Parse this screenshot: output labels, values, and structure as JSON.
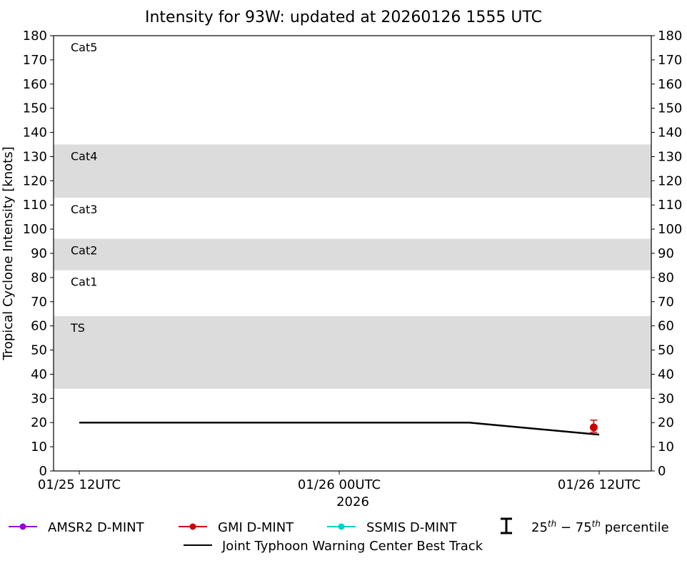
{
  "chart_data": {
    "type": "line",
    "title": "Intensity for 93W: updated at 20260126 1555 UTC",
    "xlabel": "2026",
    "ylabel": "Tropical Cyclone Intensity [knots]",
    "ylim": [
      0,
      180
    ],
    "yticks": [
      0,
      10,
      20,
      30,
      40,
      50,
      60,
      70,
      80,
      90,
      100,
      110,
      120,
      130,
      140,
      150,
      160,
      170,
      180
    ],
    "xlim_hours": [
      -2.4,
      12.4
    ],
    "xticks": [
      {
        "hour": 0,
        "label": "01/25 12UTC"
      },
      {
        "hour": 12,
        "label": "01/26 00UTC"
      },
      {
        "hour": 24,
        "label": "01/26 12UTC"
      }
    ],
    "category_bands": [
      {
        "label": "TS",
        "min": 34,
        "max": 64,
        "shaded": true
      },
      {
        "label": "Cat1",
        "min": 64,
        "max": 83,
        "shaded": false
      },
      {
        "label": "Cat2",
        "min": 83,
        "max": 96,
        "shaded": true
      },
      {
        "label": "Cat3",
        "min": 96,
        "max": 113,
        "shaded": false
      },
      {
        "label": "Cat4",
        "min": 113,
        "max": 135,
        "shaded": true
      },
      {
        "label": "Cat5",
        "min": 135,
        "max": 180,
        "shaded": false
      }
    ],
    "series": [
      {
        "name": "Joint Typhoon Warning Center Best Track",
        "color": "#000000",
        "points": [
          {
            "hour": 0,
            "value": 20
          },
          {
            "hour": 18,
            "value": 20
          },
          {
            "hour": 24,
            "value": 15
          }
        ]
      },
      {
        "name": "GMI D-MINT",
        "color": "#cc0000",
        "points": [
          {
            "hour": 23.75,
            "value": 18,
            "p25": 16,
            "p75": 21
          }
        ]
      },
      {
        "name": "AMSR2 D-MINT",
        "color": "#9400d3",
        "points": []
      },
      {
        "name": "SSMIS D-MINT",
        "color": "#00ced1",
        "points": []
      }
    ],
    "legend": {
      "position": "bottom",
      "entries": [
        "AMSR2 D-MINT",
        "GMI D-MINT",
        "SSMIS D-MINT",
        "25th - 75th percentile",
        "Joint Typhoon Warning Center Best Track"
      ]
    }
  },
  "legend": {
    "amsr2": "AMSR2 D-MINT",
    "gmi": "GMI D-MINT",
    "ssmis": "SSMIS D-MINT",
    "pct_a": "25",
    "pct_sup_a": "th",
    "pct_mid": " − 75",
    "pct_sup_b": "th",
    "pct_end": " percentile",
    "jtwc": "Joint Typhoon Warning Center Best Track"
  }
}
